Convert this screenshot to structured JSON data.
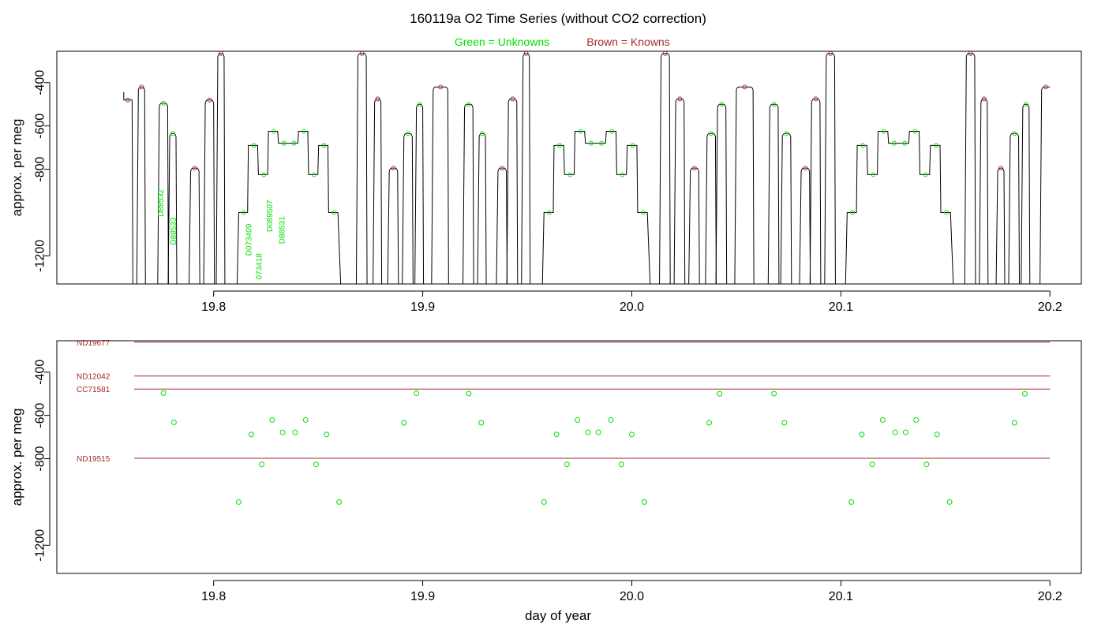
{
  "figure": {
    "title": "160119a   O2 Time Series (without CO2 correction)",
    "legend_unknowns": "Green = Unknowns",
    "legend_knowns": "Brown = Knowns",
    "colors": {
      "unknown": "#00e000",
      "known": "#a52a2a",
      "trace": "#000000"
    }
  },
  "chart_data": [
    {
      "type": "line",
      "name": "top-panel",
      "xlabel": "",
      "ylabel": "approx. per meg",
      "xlim": [
        19.725,
        20.215
      ],
      "ylim": [
        -1330,
        -255
      ],
      "y_reversed": true,
      "xticks": [
        19.8,
        19.9,
        20.0,
        20.1,
        20.2
      ],
      "yticks": [
        -400,
        -600,
        -800,
        -1200
      ],
      "trace_segments": [
        {
          "x0": 19.757,
          "x1": 19.761,
          "y": -480,
          "from_bottom": false
        },
        {
          "x0": 19.764,
          "x1": 19.767,
          "y": -420
        },
        {
          "x0": 19.774,
          "x1": 19.778,
          "y": -495
        },
        {
          "x0": 19.779,
          "x1": 19.782,
          "y": -635
        },
        {
          "x0": 19.789,
          "x1": 19.793,
          "y": -795
        },
        {
          "x0": 19.796,
          "x1": 19.8,
          "y": -480
        },
        {
          "x0": 19.802,
          "x1": 19.805,
          "y": -265
        },
        {
          "x0": 19.812,
          "x1": 19.815,
          "y": -1000,
          "steps": [
            -1000,
            -690,
            -825,
            -625,
            -680,
            -680,
            -625,
            -825,
            -690,
            -1000
          ],
          "x_end": 19.86
        },
        {
          "x0": 19.869,
          "x1": 19.873,
          "y": -265
        },
        {
          "x0": 19.877,
          "x1": 19.88,
          "y": -475
        },
        {
          "x0": 19.884,
          "x1": 19.888,
          "y": -795
        },
        {
          "x0": 19.891,
          "x1": 19.895,
          "y": -635
        },
        {
          "x0": 19.897,
          "x1": 19.9,
          "y": -500
        },
        {
          "x0": 19.905,
          "x1": 19.912,
          "y": -420
        },
        {
          "x0": 19.92,
          "x1": 19.924,
          "y": -500
        },
        {
          "x0": 19.927,
          "x1": 19.93,
          "y": -635
        },
        {
          "x0": 19.936,
          "x1": 19.94,
          "y": -795
        },
        {
          "x0": 19.941,
          "x1": 19.945,
          "y": -475
        },
        {
          "x0": 19.948,
          "x1": 19.951,
          "y": -265
        },
        {
          "x0": 19.958,
          "x1": 19.962,
          "y": -1000,
          "steps": [
            -1000,
            -690,
            -825,
            -625,
            -680,
            -680,
            -625,
            -825,
            -690,
            -1000
          ],
          "x_end": 20.008
        },
        {
          "x0": 20.014,
          "x1": 20.018,
          "y": -265
        },
        {
          "x0": 20.021,
          "x1": 20.025,
          "y": -475
        },
        {
          "x0": 20.028,
          "x1": 20.032,
          "y": -795
        },
        {
          "x0": 20.036,
          "x1": 20.04,
          "y": -635
        },
        {
          "x0": 20.041,
          "x1": 20.045,
          "y": -500
        },
        {
          "x0": 20.05,
          "x1": 20.058,
          "y": -420
        },
        {
          "x0": 20.066,
          "x1": 20.07,
          "y": -500
        },
        {
          "x0": 20.072,
          "x1": 20.076,
          "y": -635
        },
        {
          "x0": 20.081,
          "x1": 20.085,
          "y": -795
        },
        {
          "x0": 20.086,
          "x1": 20.09,
          "y": -475
        },
        {
          "x0": 20.093,
          "x1": 20.097,
          "y": -265
        },
        {
          "x0": 20.103,
          "x1": 20.107,
          "y": -1000,
          "steps": [
            -1000,
            -690,
            -825,
            -625,
            -680,
            -680,
            -625,
            -825,
            -690,
            -1000
          ],
          "x_end": 20.153
        },
        {
          "x0": 20.16,
          "x1": 20.164,
          "y": -265
        },
        {
          "x0": 20.167,
          "x1": 20.17,
          "y": -475
        },
        {
          "x0": 20.175,
          "x1": 20.178,
          "y": -795
        },
        {
          "x0": 20.181,
          "x1": 20.185,
          "y": -635
        },
        {
          "x0": 20.187,
          "x1": 20.19,
          "y": -500
        },
        {
          "x0": 20.196,
          "x1": 20.2,
          "y": -420,
          "to_bottom": false
        }
      ],
      "sample_ids": [
        {
          "text": "D88532",
          "x": 19.776,
          "y": -1020
        },
        {
          "text": "D88533",
          "x": 19.782,
          "y": -1150
        },
        {
          "text": "D073409",
          "x": 19.818,
          "y": -1200
        },
        {
          "text": "073418",
          "x": 19.823,
          "y": -1310
        },
        {
          "text": "D089507",
          "x": 19.828,
          "y": -1090
        },
        {
          "text": "D88531",
          "x": 19.834,
          "y": -1145
        }
      ]
    },
    {
      "type": "scatter",
      "name": "bottom-panel",
      "xlabel": "day of year",
      "ylabel": "approx. per meg",
      "xlim": [
        19.725,
        20.215
      ],
      "ylim": [
        -1330,
        -255
      ],
      "y_reversed": true,
      "xticks": [
        19.8,
        19.9,
        20.0,
        20.1,
        20.2
      ],
      "yticks": [
        -400,
        -600,
        -800,
        -1200
      ],
      "knowns": [
        {
          "name": "ND19677",
          "y": -262
        },
        {
          "name": "ND12042",
          "y": -418
        },
        {
          "name": "CC71581",
          "y": -478
        },
        {
          "name": "ND19515",
          "y": -798
        }
      ],
      "unknowns": [
        {
          "x": 19.776,
          "y": -497
        },
        {
          "x": 19.781,
          "y": -632
        },
        {
          "x": 19.812,
          "y": -1000
        },
        {
          "x": 19.818,
          "y": -688
        },
        {
          "x": 19.823,
          "y": -826
        },
        {
          "x": 19.828,
          "y": -621
        },
        {
          "x": 19.833,
          "y": -678
        },
        {
          "x": 19.839,
          "y": -678
        },
        {
          "x": 19.844,
          "y": -621
        },
        {
          "x": 19.849,
          "y": -826
        },
        {
          "x": 19.854,
          "y": -688
        },
        {
          "x": 19.86,
          "y": -1000
        },
        {
          "x": 19.891,
          "y": -634
        },
        {
          "x": 19.897,
          "y": -498
        },
        {
          "x": 19.922,
          "y": -499
        },
        {
          "x": 19.928,
          "y": -634
        },
        {
          "x": 19.958,
          "y": -1000
        },
        {
          "x": 19.964,
          "y": -688
        },
        {
          "x": 19.969,
          "y": -826
        },
        {
          "x": 19.974,
          "y": -621
        },
        {
          "x": 19.979,
          "y": -678
        },
        {
          "x": 19.984,
          "y": -678
        },
        {
          "x": 19.99,
          "y": -621
        },
        {
          "x": 19.995,
          "y": -826
        },
        {
          "x": 20.0,
          "y": -688
        },
        {
          "x": 20.006,
          "y": -1000
        },
        {
          "x": 20.037,
          "y": -634
        },
        {
          "x": 20.042,
          "y": -500
        },
        {
          "x": 20.068,
          "y": -499
        },
        {
          "x": 20.073,
          "y": -634
        },
        {
          "x": 20.105,
          "y": -1000
        },
        {
          "x": 20.11,
          "y": -688
        },
        {
          "x": 20.115,
          "y": -826
        },
        {
          "x": 20.12,
          "y": -621
        },
        {
          "x": 20.126,
          "y": -678
        },
        {
          "x": 20.131,
          "y": -678
        },
        {
          "x": 20.136,
          "y": -621
        },
        {
          "x": 20.141,
          "y": -826
        },
        {
          "x": 20.146,
          "y": -688
        },
        {
          "x": 20.152,
          "y": -1000
        },
        {
          "x": 20.183,
          "y": -634
        },
        {
          "x": 20.188,
          "y": -500
        }
      ]
    }
  ]
}
